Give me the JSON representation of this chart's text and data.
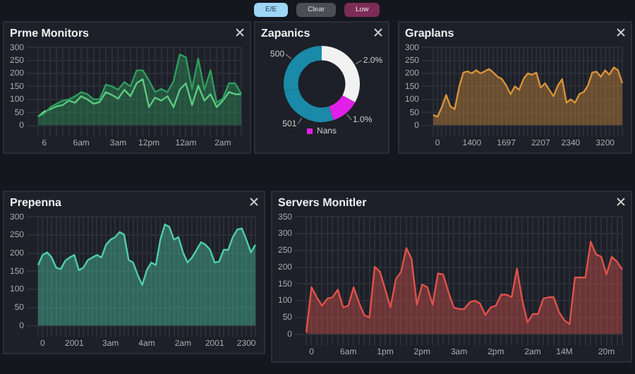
{
  "chart_data": [
    {
      "type": "other",
      "annotations": [
        "E/E",
        "Clear",
        "Low"
      ]
    },
    {
      "type": "area",
      "title": "Prme Monitors",
      "grid": true,
      "ylim": [
        0,
        300
      ],
      "yticks": [
        0,
        50,
        100,
        150,
        200,
        250,
        300
      ],
      "categories": [
        null,
        "6",
        null,
        null,
        null,
        null,
        null,
        "6am",
        null,
        null,
        null,
        null,
        null,
        "3am",
        null,
        null,
        null,
        null,
        "12pm",
        null,
        null,
        null,
        null,
        null,
        "12am",
        null,
        null,
        null,
        null,
        null,
        "2am",
        null,
        null,
        null
      ],
      "series": [
        {
          "type": "area",
          "color": "#2f9d5c",
          "values": [
            33,
            45,
            70,
            83,
            95,
            100,
            112,
            128,
            120,
            100,
            100,
            157,
            150,
            137,
            167,
            150,
            212,
            212,
            173,
            128,
            140,
            128,
            170,
            273,
            262,
            140,
            257,
            137,
            212,
            87,
            103,
            162,
            162,
            120
          ]
        },
        {
          "type": "line",
          "color": "#7ae69a",
          "values": [
            33,
            53,
            62,
            73,
            78,
            95,
            87,
            112,
            100,
            83,
            90,
            128,
            117,
            103,
            137,
            112,
            162,
            178,
            70,
            107,
            95,
            112,
            70,
            137,
            162,
            78,
            153,
            95,
            120,
            70,
            95,
            128,
            120,
            120
          ]
        }
      ]
    },
    {
      "type": "donut",
      "title": "Zapanics",
      "legend": "bottom",
      "categories": [
        null,
        "Nans",
        null,
        null
      ],
      "values": [
        33,
        12,
        27,
        28
      ],
      "colors": [
        "#f2f2f2",
        "#e020e8",
        "#1a8aa8",
        "#1a8aa8"
      ],
      "annotations": [
        "2.0%",
        "1.0%",
        "501",
        "500"
      ]
    },
    {
      "type": "area",
      "title": "Graplans",
      "grid": true,
      "ylim": [
        0,
        300
      ],
      "yticks": [
        0,
        50,
        100,
        150,
        200,
        250,
        300
      ],
      "color": "#d9923a",
      "categories": [
        null,
        "0",
        null,
        null,
        null,
        null,
        null,
        null,
        null,
        "1400",
        null,
        null,
        null,
        null,
        null,
        null,
        null,
        "1697",
        null,
        null,
        null,
        null,
        null,
        null,
        null,
        "2207",
        null,
        null,
        null,
        null,
        null,
        null,
        "2340",
        null,
        null,
        null,
        null,
        null,
        null,
        null,
        "3200",
        null,
        null,
        null,
        null
      ],
      "values": [
        40,
        33,
        70,
        117,
        73,
        62,
        145,
        203,
        208,
        200,
        212,
        200,
        208,
        217,
        203,
        187,
        178,
        153,
        120,
        150,
        137,
        178,
        200,
        195,
        203,
        145,
        162,
        137,
        112,
        153,
        178,
        87,
        100,
        87,
        120,
        128,
        153,
        203,
        207,
        187,
        212,
        195,
        223,
        212,
        162
      ]
    },
    {
      "type": "area",
      "title": "Prepenna",
      "grid": true,
      "ylim": [
        0,
        300
      ],
      "yticks": [
        0,
        50,
        100,
        150,
        200,
        250,
        300
      ],
      "color": "#4fcfa8",
      "categories": [
        null,
        "0",
        null,
        null,
        null,
        null,
        null,
        null,
        "2001",
        null,
        null,
        null,
        null,
        null,
        null,
        null,
        "3am",
        null,
        null,
        null,
        null,
        null,
        null,
        null,
        "4am",
        null,
        null,
        null,
        null,
        null,
        null,
        null,
        "2am",
        null,
        null,
        null,
        null,
        null,
        null,
        "2001",
        null,
        null,
        null,
        null,
        null,
        null,
        "2300",
        null,
        null
      ],
      "values": [
        167,
        195,
        202,
        188,
        160,
        156,
        179,
        188,
        195,
        153,
        160,
        181,
        188,
        195,
        188,
        223,
        237,
        244,
        258,
        251,
        181,
        174,
        140,
        112,
        153,
        174,
        167,
        237,
        279,
        272,
        237,
        244,
        202,
        174,
        188,
        209,
        230,
        223,
        209,
        174,
        177,
        209,
        209,
        244,
        265,
        268,
        237,
        202,
        223
      ]
    },
    {
      "type": "area",
      "title": "Servers Monitler",
      "grid": true,
      "ylim": [
        0,
        350
      ],
      "yticks": [
        0,
        50,
        100,
        150,
        200,
        250,
        300,
        350
      ],
      "color": "#e0524a",
      "categories": [
        null,
        "0",
        null,
        null,
        null,
        null,
        null,
        null,
        "6am",
        null,
        null,
        null,
        null,
        null,
        null,
        "1pm",
        null,
        null,
        null,
        null,
        null,
        null,
        "2pm",
        null,
        null,
        null,
        null,
        null,
        null,
        "3am",
        null,
        null,
        null,
        null,
        null,
        null,
        "2pm",
        null,
        null,
        null,
        null,
        null,
        null,
        "2am",
        null,
        null,
        null,
        null,
        null,
        "14M",
        null,
        null,
        null,
        null,
        null,
        null,
        null,
        "20m",
        null,
        null,
        null
      ],
      "values": [
        5,
        140,
        110,
        85,
        106,
        110,
        133,
        80,
        85,
        140,
        95,
        57,
        50,
        201,
        186,
        133,
        80,
        163,
        186,
        257,
        224,
        88,
        148,
        140,
        88,
        181,
        178,
        125,
        80,
        75,
        75,
        95,
        100,
        91,
        57,
        80,
        85,
        118,
        118,
        110,
        196,
        103,
        35,
        60,
        60,
        106,
        110,
        110,
        65,
        42,
        30,
        169,
        169,
        169,
        276,
        238,
        231,
        178,
        231,
        216,
        193
      ]
    }
  ]
}
